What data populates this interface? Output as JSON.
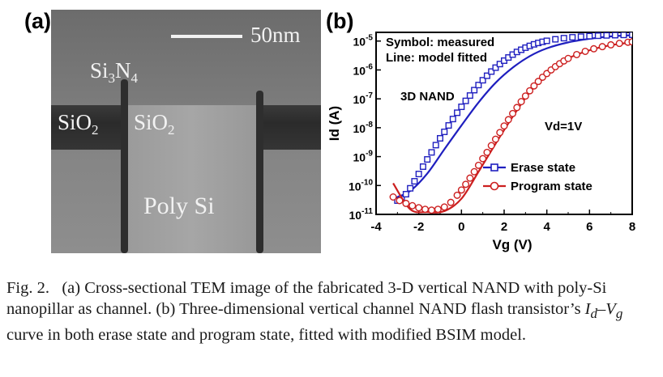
{
  "panel_a": {
    "label": "(a)",
    "scale_text": "50nm",
    "si3n4_main": "Si",
    "si3n4_sub1": "3",
    "si3n4_mid": "N",
    "si3n4_sub2": "4",
    "sio2_left_main": "SiO",
    "sio2_left_sub": "2",
    "sio2_right_main": "SiO",
    "sio2_right_sub": "2",
    "poly_si": "Poly Si"
  },
  "panel_b_label": "(b)",
  "chart_data": {
    "type": "scatter",
    "xlabel": "Vg (V)",
    "ylabel": "Id (A)",
    "x_scale": "linear",
    "y_scale": "log",
    "xlim": [
      -4,
      8
    ],
    "ylim": [
      1e-11,
      2e-05
    ],
    "x_ticks": [
      -4,
      -2,
      0,
      2,
      4,
      6,
      8
    ],
    "y_ticks": [
      1e-11,
      1e-10,
      1e-09,
      1e-08,
      1e-07,
      1e-06,
      1e-05
    ],
    "y_tick_labels": [
      {
        "base": "10",
        "exp": "-11"
      },
      {
        "base": "10",
        "exp": "-10"
      },
      {
        "base": "10",
        "exp": "-9"
      },
      {
        "base": "10",
        "exp": "-8"
      },
      {
        "base": "10",
        "exp": "-7"
      },
      {
        "base": "10",
        "exp": "-6"
      },
      {
        "base": "10",
        "exp": "-5"
      }
    ],
    "grid": false,
    "legend_position": "bottom-right",
    "annotations": [
      "Symbol: measured",
      "Line: model fitted",
      "3D NAND",
      "Vd=1V"
    ],
    "series": [
      {
        "name": "Erase state",
        "color": "#1f1fbf",
        "marker": "square",
        "measured": {
          "x": [
            -3.0,
            -2.8,
            -2.6,
            -2.4,
            -2.2,
            -2.0,
            -1.8,
            -1.6,
            -1.4,
            -1.2,
            -1.0,
            -0.8,
            -0.6,
            -0.4,
            -0.2,
            0.0,
            0.2,
            0.4,
            0.6,
            0.8,
            1.0,
            1.2,
            1.4,
            1.6,
            1.8,
            2.0,
            2.2,
            2.4,
            2.6,
            2.8,
            3.0,
            3.2,
            3.4,
            3.6,
            3.8,
            4.0,
            4.4,
            4.8,
            5.2,
            5.6,
            6.0,
            6.4,
            6.8,
            7.2,
            7.6,
            8.0
          ],
          "y": [
            3e-11,
            3.5e-11,
            5e-11,
            8e-11,
            1.4e-10,
            2.5e-10,
            4.5e-10,
            8e-10,
            1.4e-09,
            2.5e-09,
            4.3e-09,
            7.2e-09,
            1.2e-08,
            2e-08,
            3.3e-08,
            5.3e-08,
            8.5e-08,
            1.3e-07,
            2e-07,
            3e-07,
            4.4e-07,
            6.3e-07,
            8.8e-07,
            1.2e-06,
            1.6e-06,
            2.1e-06,
            2.7e-06,
            3.4e-06,
            4.2e-06,
            5e-06,
            5.9e-06,
            6.8e-06,
            7.7e-06,
            8.6e-06,
            9.4e-06,
            1.02e-05,
            1.15e-05,
            1.26e-05,
            1.35e-05,
            1.42e-05,
            1.48e-05,
            1.53e-05,
            1.57e-05,
            1.6e-05,
            1.63e-05,
            1.65e-05
          ]
        },
        "model": {
          "x": [
            -3.2,
            -2.4,
            -1.6,
            -0.8,
            0.0,
            0.8,
            1.6,
            2.4,
            3.2,
            4.0,
            5.0,
            6.0,
            7.0,
            8.0
          ],
          "y": [
            3.5e-11,
            6.5e-11,
            2.6e-10,
            1.8e-09,
            1.2e-08,
            7.5e-08,
            3.6e-07,
            1.2e-06,
            3e-06,
            5.6e-06,
            9e-06,
            1.2e-05,
            1.45e-05,
            1.6e-05
          ]
        }
      },
      {
        "name": "Program state",
        "color": "#cc1f1f",
        "marker": "circle",
        "measured": {
          "x": [
            -3.2,
            -2.9,
            -2.6,
            -2.3,
            -2.0,
            -1.7,
            -1.4,
            -1.1,
            -0.8,
            -0.5,
            -0.2,
            0.0,
            0.2,
            0.4,
            0.6,
            0.8,
            1.0,
            1.2,
            1.4,
            1.6,
            1.8,
            2.0,
            2.2,
            2.4,
            2.6,
            2.8,
            3.0,
            3.2,
            3.4,
            3.6,
            3.8,
            4.0,
            4.2,
            4.4,
            4.6,
            4.8,
            5.0,
            5.4,
            5.8,
            6.2,
            6.6,
            7.0,
            7.4,
            7.8,
            8.0
          ],
          "y": [
            4e-11,
            3e-11,
            2.4e-11,
            2e-11,
            1.7e-11,
            1.5e-11,
            1.4e-11,
            1.5e-11,
            1.8e-11,
            2.6e-11,
            4.6e-11,
            7e-11,
            1.1e-10,
            1.8e-10,
            3e-10,
            5e-10,
            8.5e-10,
            1.4e-09,
            2.4e-09,
            4e-09,
            6.8e-09,
            1.15e-08,
            1.9e-08,
            3.1e-08,
            5e-08,
            8e-08,
            1.25e-07,
            1.9e-07,
            2.8e-07,
            4e-07,
            5.6e-07,
            7.5e-07,
            1e-06,
            1.3e-06,
            1.65e-06,
            2.05e-06,
            2.5e-06,
            3.4e-06,
            4.4e-06,
            5.4e-06,
            6.4e-06,
            7.4e-06,
            8.3e-06,
            9.1e-06,
            9.4e-06
          ]
        },
        "model": {
          "x": [
            -3.2,
            -2.4,
            -1.6,
            -0.8,
            0.0,
            0.8,
            1.6,
            2.4,
            3.2,
            4.0,
            5.0,
            6.0,
            7.0,
            8.0
          ],
          "y": [
            1.2e-10,
            1.5e-11,
            1.2e-11,
            1.3e-11,
            3.5e-11,
            3e-10,
            2.8e-09,
            2.4e-08,
            1.7e-07,
            8e-07,
            2.5e-06,
            4.8e-06,
            7.2e-06,
            9e-06
          ]
        }
      }
    ]
  },
  "caption": {
    "fig_label": "Fig. 2.",
    "part_a_1": "(a) Cross-sectional TEM image of the fabricated 3-D vertical ",
    "nand_1": "NAND",
    "part_a_2": " with poly-Si nanopillar as channel. (b) Three-dimensional vertical channel ",
    "nand_2": "NAND",
    "part_b_1": " flash transistor’s ",
    "i_d": "I",
    "i_d_sub": "d",
    "dash": "–",
    "v_g": "V",
    "v_g_sub": "g",
    "part_b_2": " curve in both erase state and program state, fitted with modified BSIM model."
  }
}
